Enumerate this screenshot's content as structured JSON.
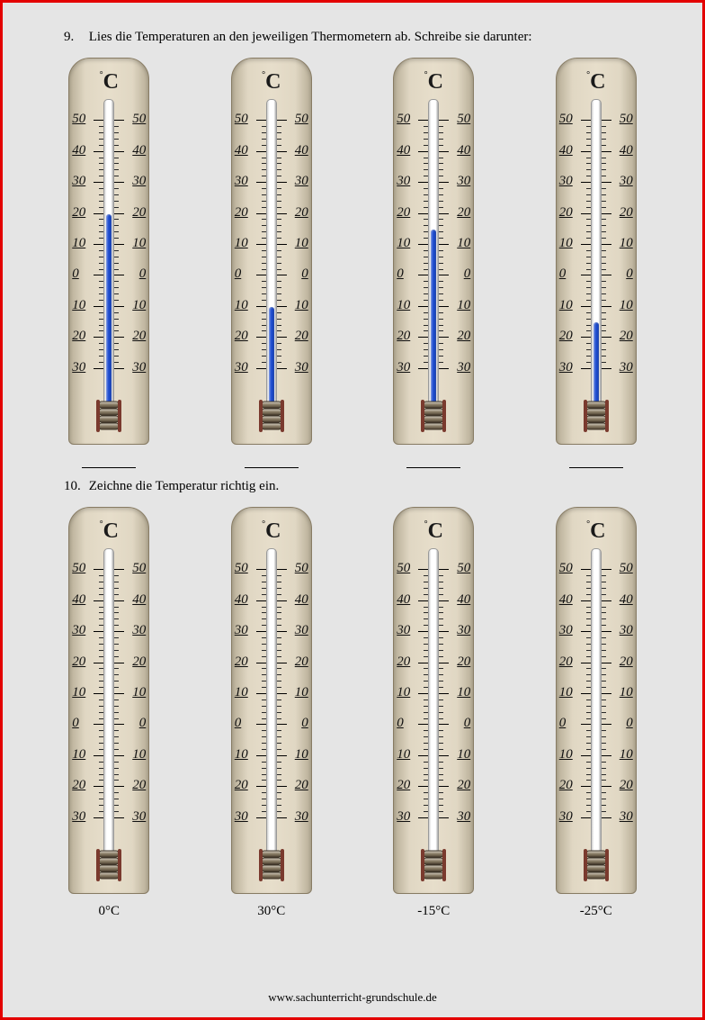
{
  "page": {
    "border_color": "#e30000",
    "background": "#e5e5e5",
    "footer": "www.sachunterricht-grundschule.de"
  },
  "questions": {
    "q9": {
      "num": "9.",
      "text": "Lies die Temperaturen an den jeweiligen Thermometern ab. Schreibe sie darunter:"
    },
    "q10": {
      "num": "10.",
      "text": "Zeichne die Temperatur richtig ein."
    }
  },
  "thermometer_style": {
    "scale_labels": [
      "50",
      "40",
      "30",
      "20",
      "10",
      "0",
      "10",
      "20",
      "30"
    ],
    "scale_min": -35,
    "scale_max": 55,
    "unit_header": "C",
    "body_colors": [
      "#b7ad96",
      "#e7decb"
    ],
    "fluid_color": "#1d4cd0",
    "tube_color": "#ffffff",
    "tick_color": "#2a2a2a",
    "label_fontsize": 15
  },
  "row1": {
    "items": [
      {
        "reading": 20,
        "show_fluid": true,
        "answer": ""
      },
      {
        "reading": -10,
        "show_fluid": true,
        "answer": ""
      },
      {
        "reading": 15,
        "show_fluid": true,
        "answer": ""
      },
      {
        "reading": -15,
        "show_fluid": true,
        "answer": ""
      }
    ]
  },
  "row2": {
    "items": [
      {
        "reading": null,
        "show_fluid": false,
        "label": "0°C"
      },
      {
        "reading": null,
        "show_fluid": false,
        "label": "30°C"
      },
      {
        "reading": null,
        "show_fluid": false,
        "label": "-15°C"
      },
      {
        "reading": null,
        "show_fluid": false,
        "label": "-25°C"
      }
    ]
  }
}
